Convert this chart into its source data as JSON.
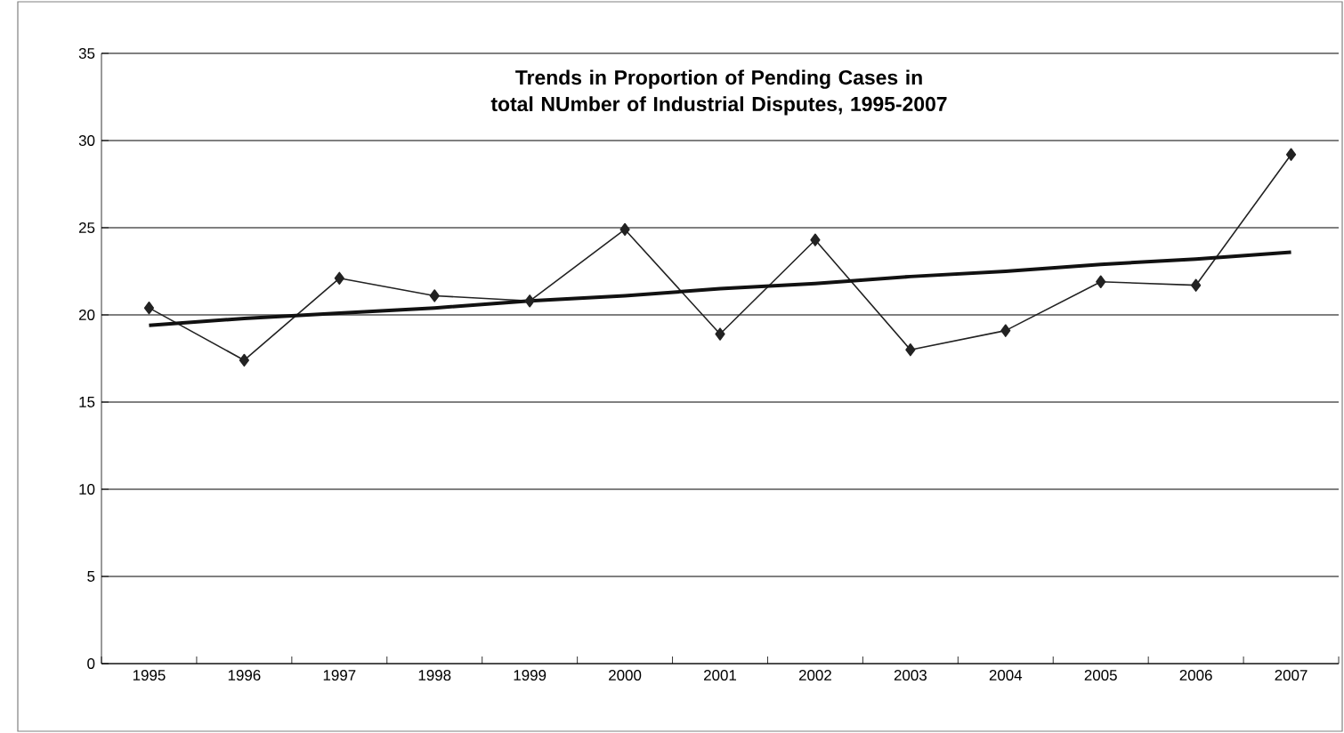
{
  "chart_data": {
    "type": "line",
    "title": "Trends in Proportion of Pending Cases in total NUmber of Industrial Disputes, 1995-2007",
    "categories": [
      "1995",
      "1996",
      "1997",
      "1998",
      "1999",
      "2000",
      "2001",
      "2002",
      "2003",
      "2004",
      "2005",
      "2006",
      "2007"
    ],
    "series": [
      {
        "color": "#222222",
        "marker": "diamond",
        "values": [
          20.4,
          17.4,
          22.1,
          21.1,
          20.8,
          24.9,
          18.9,
          24.3,
          18.0,
          19.1,
          21.9,
          21.7,
          29.2
        ]
      },
      {
        "color": "#111111",
        "marker": "none",
        "values": [
          19.4,
          19.8,
          20.1,
          20.4,
          20.8,
          21.1,
          21.5,
          21.8,
          22.2,
          22.5,
          22.9,
          23.2,
          23.6
        ]
      }
    ],
    "ylim": [
      0,
      35
    ],
    "yticks": [
      0,
      5,
      10,
      15,
      20,
      25,
      30,
      35
    ],
    "grid": "y"
  }
}
